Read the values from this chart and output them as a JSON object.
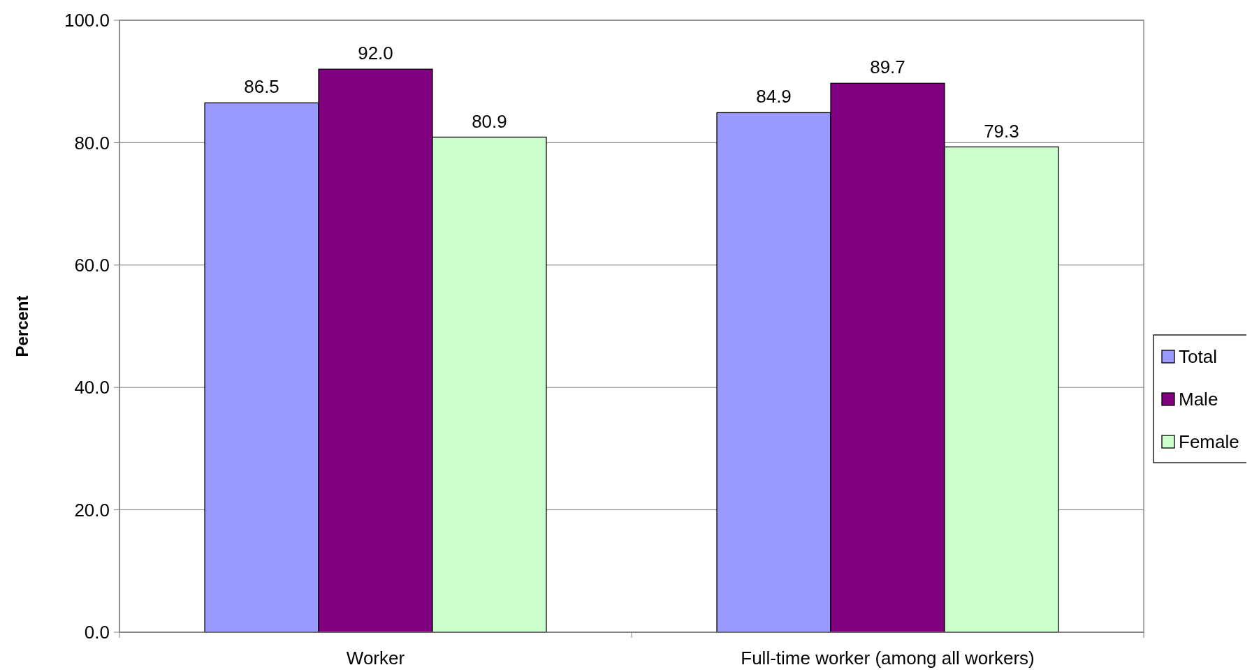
{
  "chart_data": {
    "type": "bar",
    "ylabel": "Percent",
    "categories": [
      "Worker",
      "Full-time worker (among all workers)"
    ],
    "series": [
      {
        "name": "Total",
        "color": "#9999ff",
        "values": [
          86.5,
          84.9
        ],
        "value_labels": [
          "86.5",
          "84.9"
        ]
      },
      {
        "name": "Male",
        "color": "#800080",
        "values": [
          92.0,
          89.7
        ],
        "value_labels": [
          "92.0",
          "89.7"
        ]
      },
      {
        "name": "Female",
        "color": "#ccffcc",
        "values": [
          80.9,
          79.3
        ],
        "value_labels": [
          "80.9",
          "79.3"
        ]
      }
    ],
    "ylim": [
      0,
      100
    ],
    "yticks": [
      {
        "value": 0,
        "label": "0.0"
      },
      {
        "value": 20,
        "label": "20.0"
      },
      {
        "value": 40,
        "label": "40.0"
      },
      {
        "value": 60,
        "label": "60.0"
      },
      {
        "value": 80,
        "label": "80.0"
      },
      {
        "value": 100,
        "label": "100.0"
      }
    ],
    "grid": "y",
    "legend": "right"
  }
}
